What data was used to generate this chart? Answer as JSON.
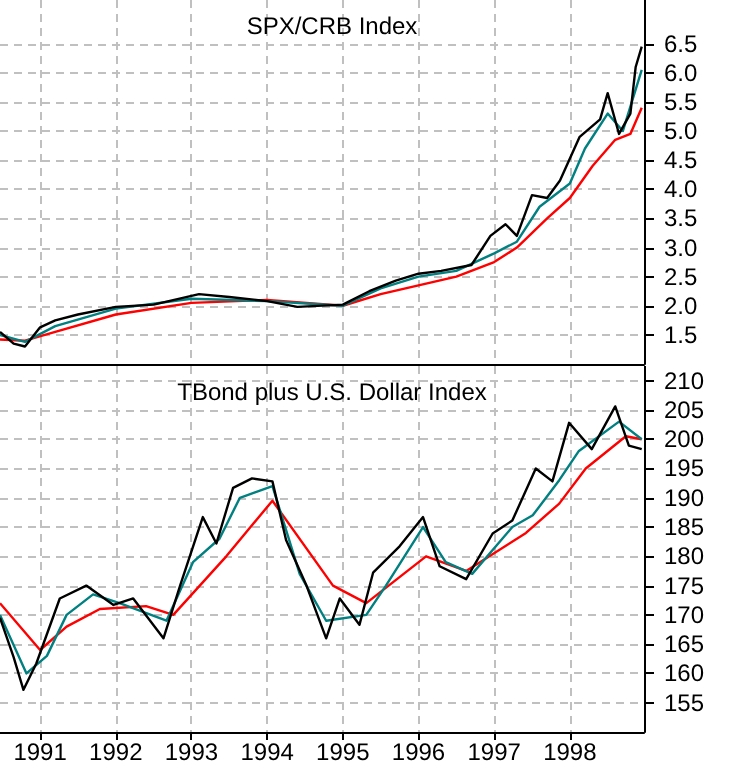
{
  "chart_data": [
    {
      "type": "line",
      "title": "SPX/CRB Index",
      "xlim": [
        1990.47,
        1998.98
      ],
      "xticks": [
        {
          "value": 1991,
          "label": null
        },
        {
          "value": 1992,
          "label": null
        },
        {
          "value": 1993,
          "label": null
        },
        {
          "value": 1994,
          "label": null
        },
        {
          "value": 1995,
          "label": null
        },
        {
          "value": 1996,
          "label": null
        },
        {
          "value": 1997,
          "label": null
        },
        {
          "value": 1998,
          "label": null
        }
      ],
      "ylim": [
        1.0,
        7.25
      ],
      "yticks": [
        1.5,
        {
          "value": 2,
          "label": "2.0"
        },
        2.5,
        {
          "value": 3,
          "label": "3.0"
        },
        3.5,
        {
          "value": 4,
          "label": "4.0"
        },
        4.5,
        {
          "value": 5,
          "label": "5.0"
        },
        5.5,
        {
          "value": 6,
          "label": "6.0"
        },
        6.5
      ],
      "grid": true,
      "tick_labels": "y",
      "marker": "none",
      "series": [
        {
          "color": "#ff0000",
          "x": [
            1990.47,
            1990.8,
            1991.2,
            1992,
            1993,
            1994,
            1995,
            1995.5,
            1996,
            1996.5,
            1997,
            1997.3,
            1997.7,
            1998,
            1998.3,
            1998.6,
            1998.8,
            1998.95
          ],
          "values": [
            1.42,
            1.4,
            1.55,
            1.85,
            2.05,
            2.1,
            2.0,
            2.2,
            2.35,
            2.5,
            2.75,
            3.0,
            3.5,
            3.85,
            4.4,
            4.85,
            4.95,
            5.4
          ]
        },
        {
          "color": "#008080",
          "x": [
            1990.47,
            1990.8,
            1991.2,
            1992,
            1993,
            1994,
            1995,
            1995.5,
            1996,
            1996.5,
            1997,
            1997.3,
            1997.6,
            1998,
            1998.2,
            1998.5,
            1998.7,
            1998.95
          ],
          "values": [
            1.5,
            1.38,
            1.65,
            1.95,
            2.12,
            2.08,
            2.0,
            2.3,
            2.5,
            2.6,
            2.9,
            3.1,
            3.7,
            4.1,
            4.7,
            5.3,
            5.0,
            6.05
          ]
        },
        {
          "color": "#000000",
          "x": [
            1990.47,
            1990.65,
            1990.8,
            1991.0,
            1991.2,
            1991.5,
            1992.0,
            1992.5,
            1993.1,
            1993.5,
            1994.0,
            1994.4,
            1995.0,
            1995.35,
            1995.7,
            1996.0,
            1996.3,
            1996.7,
            1996.95,
            1997.15,
            1997.3,
            1997.5,
            1997.7,
            1997.87,
            1998.13,
            1998.4,
            1998.5,
            1998.65,
            1998.8,
            1998.87,
            1998.95
          ],
          "values": [
            1.55,
            1.35,
            1.3,
            1.63,
            1.75,
            1.85,
            1.98,
            2.02,
            2.2,
            2.15,
            2.08,
            1.98,
            2.02,
            2.25,
            2.43,
            2.55,
            2.6,
            2.7,
            3.2,
            3.4,
            3.2,
            3.9,
            3.85,
            4.15,
            4.9,
            5.2,
            5.65,
            4.95,
            5.3,
            6.1,
            6.45
          ]
        }
      ]
    },
    {
      "type": "line",
      "title": "TBond plus U.S. Dollar Index",
      "xlim": [
        1990.47,
        1998.98
      ],
      "xticks": [
        1991,
        1992,
        1993,
        1994,
        1995,
        1996,
        1997,
        1998
      ],
      "ylim": [
        150,
        212.5
      ],
      "yticks": [
        155,
        160,
        165,
        170,
        175,
        180,
        185,
        190,
        195,
        200,
        205,
        210
      ],
      "grid": true,
      "marker": "none",
      "series": [
        {
          "color": "#ff0000",
          "x": [
            1990.47,
            1991.0,
            1991.35,
            1991.79,
            1992.4,
            1992.76,
            1993.46,
            1994.07,
            1994.87,
            1995.31,
            1996.1,
            1996.63,
            1997.42,
            1997.86,
            1998.21,
            1998.74,
            1998.95
          ],
          "values": [
            172,
            164,
            168,
            171,
            171.5,
            170,
            180,
            189.5,
            175,
            172,
            180,
            177.5,
            184,
            189,
            195,
            200.5,
            200
          ]
        },
        {
          "color": "#008080",
          "x": [
            1990.47,
            1990.82,
            1991.09,
            1991.35,
            1991.7,
            1992.05,
            1992.67,
            1993.02,
            1993.37,
            1993.64,
            1994.07,
            1994.43,
            1994.78,
            1995.31,
            1995.57,
            1996.06,
            1996.36,
            1996.71,
            1997.24,
            1997.51,
            1997.86,
            1998.12,
            1998.65,
            1998.95
          ],
          "values": [
            170,
            160,
            163,
            170,
            173.5,
            172,
            169,
            179,
            183,
            190,
            192,
            177,
            169,
            170,
            175,
            185,
            179,
            177,
            185,
            187,
            193,
            198,
            203,
            200
          ]
        },
        {
          "color": "#000000",
          "x": [
            1990.47,
            1990.65,
            1990.78,
            1990.95,
            1991.26,
            1991.61,
            1991.97,
            1992.23,
            1992.63,
            1992.85,
            1993.15,
            1993.33,
            1993.55,
            1993.8,
            1994.07,
            1994.25,
            1994.52,
            1994.78,
            1994.96,
            1995.22,
            1995.4,
            1995.75,
            1996.06,
            1996.28,
            1996.63,
            1996.98,
            1997.24,
            1997.55,
            1997.77,
            1997.99,
            1998.29,
            1998.6,
            1998.78,
            1998.95
          ],
          "values": [
            169.5,
            162.8,
            157.2,
            161.7,
            172.8,
            175,
            171.7,
            172.8,
            166,
            175,
            186.7,
            182.2,
            191.7,
            193.3,
            192.8,
            182.8,
            175,
            166,
            172.8,
            168.3,
            177.2,
            181.7,
            186.7,
            178.3,
            176.1,
            183.9,
            186.1,
            195,
            192.8,
            202.8,
            198.3,
            205.6,
            198.9,
            198.3
          ]
        }
      ]
    }
  ]
}
